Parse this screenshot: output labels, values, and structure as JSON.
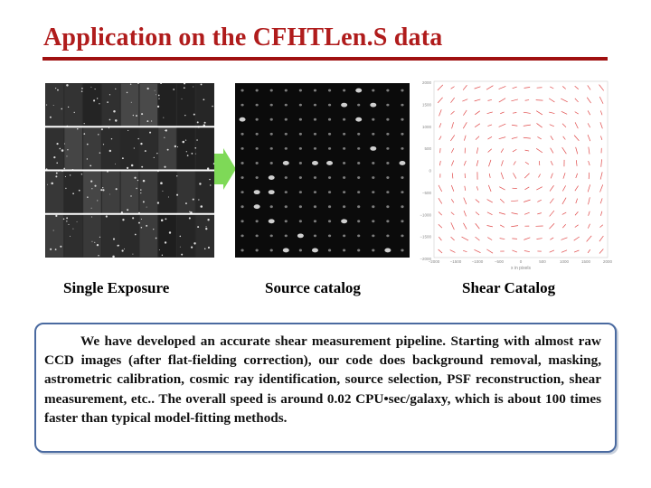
{
  "slide": {
    "title": "Application on the CFHTLen.S data"
  },
  "figures": {
    "exposure_caption": "Single Exposure",
    "source_caption": "Source catalog",
    "shear_caption": "Shear Catalog"
  },
  "shear_plot": {
    "y_ticks": [
      "2000",
      "1500",
      "1000",
      "500",
      "0",
      "−500",
      "−1000",
      "−1500",
      "−2000"
    ],
    "x_ticks": [
      "−2000",
      "−1500",
      "−1000",
      "−500",
      "0",
      "500",
      "1000",
      "1500",
      "2000"
    ],
    "x_label": "x in pixels"
  },
  "description": {
    "text": "We have developed an accurate shear measurement pipeline. Starting with almost raw CCD images (after flat-fielding correction), our code does background removal, masking, astrometric calibration, cosmic ray identification, source selection, PSF reconstruction, shear measurement, etc.. The overall speed is around 0.02 CPU•sec/galaxy, which is about 100 times faster than typical model-fitting methods."
  },
  "colors": {
    "title": "#b01c1c",
    "rule": "#a01010",
    "arrow": "#7ed957",
    "whisker": "#e04848",
    "box_border": "#4a6aa0"
  }
}
